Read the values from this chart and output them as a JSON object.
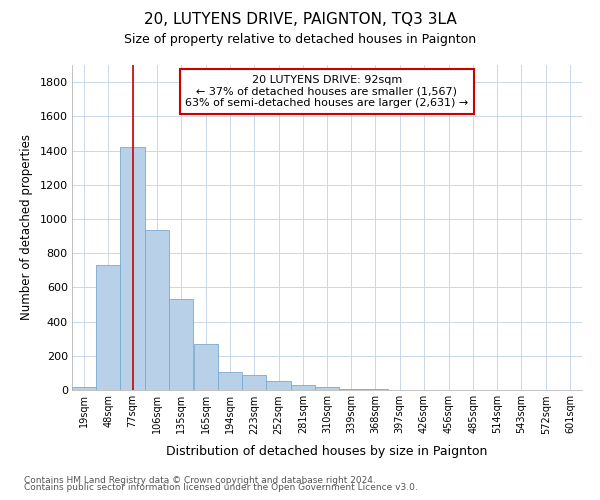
{
  "title": "20, LUTYENS DRIVE, PAIGNTON, TQ3 3LA",
  "subtitle": "Size of property relative to detached houses in Paignton",
  "xlabel": "Distribution of detached houses by size in Paignton",
  "ylabel": "Number of detached properties",
  "footnote1": "Contains HM Land Registry data © Crown copyright and database right 2024.",
  "footnote2": "Contains public sector information licensed under the Open Government Licence v3.0.",
  "annotation_line1": "20 LUTYENS DRIVE: 92sqm",
  "annotation_line2": "← 37% of detached houses are smaller (1,567)",
  "annotation_line3": "63% of semi-detached houses are larger (2,631) →",
  "bar_color": "#b8d0e8",
  "bar_edge_color": "#7aaad0",
  "vline_color": "#cc0000",
  "bins": [
    "19sqm",
    "48sqm",
    "77sqm",
    "106sqm",
    "135sqm",
    "165sqm",
    "194sqm",
    "223sqm",
    "252sqm",
    "281sqm",
    "310sqm",
    "339sqm",
    "368sqm",
    "397sqm",
    "426sqm",
    "456sqm",
    "485sqm",
    "514sqm",
    "543sqm",
    "572sqm",
    "601sqm"
  ],
  "bin_edges": [
    19,
    48,
    77,
    106,
    135,
    165,
    194,
    223,
    252,
    281,
    310,
    339,
    368,
    397,
    426,
    456,
    485,
    514,
    543,
    572,
    601
  ],
  "bar_heights": [
    20,
    730,
    1420,
    935,
    530,
    270,
    103,
    90,
    50,
    30,
    20,
    5,
    5,
    0,
    0,
    0,
    0,
    0,
    0,
    0
  ],
  "property_sqm": 92,
  "ylim": [
    0,
    1900
  ],
  "yticks": [
    0,
    200,
    400,
    600,
    800,
    1000,
    1200,
    1400,
    1600,
    1800
  ],
  "background_color": "#ffffff",
  "grid_color": "#c8d8e8"
}
